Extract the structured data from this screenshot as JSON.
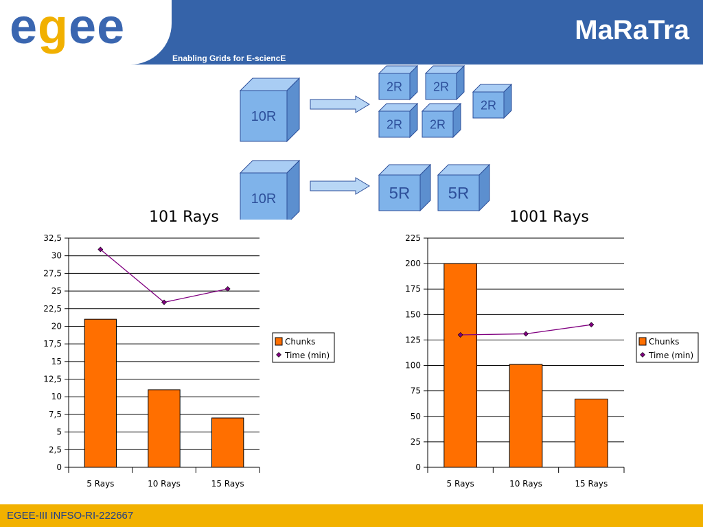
{
  "header": {
    "logo": "egee",
    "tagline": "Enabling Grids for E-sciencE",
    "title": "MaRaTra"
  },
  "diagram": {
    "row1_source": "10R",
    "row1_targets": [
      "2R",
      "2R",
      "2R",
      "2R",
      "2R"
    ],
    "row2_source": "10R",
    "row2_targets": [
      "5R",
      "5R"
    ],
    "arrow_icon": "right-arrow-icon",
    "cube_color": "#7fb3ea"
  },
  "chart_data": [
    {
      "type": "bar",
      "title": "101 Rays",
      "categories": [
        "5 Rays",
        "10 Rays",
        "15 Rays"
      ],
      "series": [
        {
          "name": "Chunks",
          "type": "bar",
          "values": [
            21,
            11,
            7
          ],
          "color": "#ff6f00"
        },
        {
          "name": "Time (min)",
          "type": "line",
          "values": [
            30.9,
            23.4,
            25.3
          ],
          "color": "#800080"
        }
      ],
      "ylim": [
        0,
        32.5
      ],
      "yticks": [
        "0",
        "2,5",
        "5",
        "7,5",
        "10",
        "12,5",
        "15",
        "17,5",
        "20",
        "22,5",
        "25",
        "27,5",
        "30",
        "32,5"
      ],
      "grid": true,
      "legend": "right"
    },
    {
      "type": "bar",
      "title": "1001 Rays",
      "categories": [
        "5 Rays",
        "10 Rays",
        "15 Rays"
      ],
      "series": [
        {
          "name": "Chunks",
          "type": "bar",
          "values": [
            200,
            101,
            67
          ],
          "color": "#ff6f00"
        },
        {
          "name": "Time (min)",
          "type": "line",
          "values": [
            130,
            131,
            140
          ],
          "color": "#800080"
        }
      ],
      "ylim": [
        0,
        225
      ],
      "yticks": [
        "0",
        "25",
        "50",
        "75",
        "100",
        "125",
        "150",
        "175",
        "200",
        "225"
      ],
      "grid": true,
      "legend": "right"
    }
  ],
  "footer": {
    "text": "EGEE-III INFSO-RI-222667"
  }
}
